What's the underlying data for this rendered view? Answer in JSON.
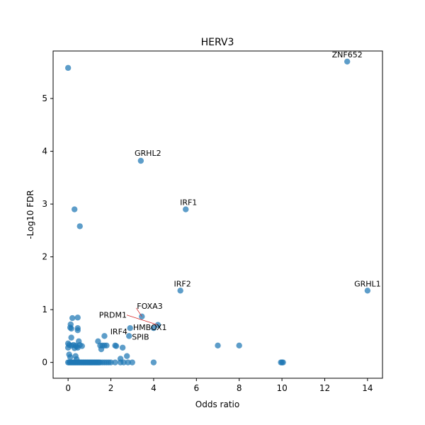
{
  "chart_data": {
    "type": "scatter",
    "title": "HERV3",
    "xlabel": "Odds ratio",
    "ylabel": "-Log10 FDR",
    "xlim": [
      -0.7,
      14.7
    ],
    "ylim": [
      -0.3,
      5.9
    ],
    "xticks": [
      0,
      2,
      4,
      6,
      8,
      10,
      12,
      14
    ],
    "yticks": [
      0,
      1,
      2,
      3,
      4,
      5
    ],
    "grid": false,
    "point_color": "#1f77b4",
    "connector_color": "#d62728",
    "points": [
      {
        "x": 0,
        "y": 5.58
      },
      {
        "x": 0.3,
        "y": 2.9
      },
      {
        "x": 0.55,
        "y": 2.58
      },
      {
        "x": 0.2,
        "y": 0.84
      },
      {
        "x": 0.45,
        "y": 0.85
      },
      {
        "x": 0.12,
        "y": 0.72
      },
      {
        "x": 0.1,
        "y": 0.66
      },
      {
        "x": 0.15,
        "y": 0.64
      },
      {
        "x": 0.45,
        "y": 0.65
      },
      {
        "x": 0.45,
        "y": 0.61
      },
      {
        "x": 0.15,
        "y": 0.47
      },
      {
        "x": 0.5,
        "y": 0.4
      },
      {
        "x": 0,
        "y": 0.36
      },
      {
        "x": 0.05,
        "y": 0.33
      },
      {
        "x": 0.15,
        "y": 0.32
      },
      {
        "x": 0.25,
        "y": 0.33
      },
      {
        "x": 0.35,
        "y": 0.32
      },
      {
        "x": 0.4,
        "y": 0.3
      },
      {
        "x": 0.45,
        "y": 0.28
      },
      {
        "x": 0.55,
        "y": 0.33
      },
      {
        "x": 0.65,
        "y": 0.31
      },
      {
        "x": 0,
        "y": 0.28
      },
      {
        "x": 0.3,
        "y": 0.27
      },
      {
        "x": 0.05,
        "y": 0.15
      },
      {
        "x": 0.1,
        "y": 0.1
      },
      {
        "x": 0.35,
        "y": 0.12
      },
      {
        "x": 0.4,
        "y": 0.06
      },
      {
        "x": 0,
        "y": 0
      },
      {
        "x": 0.05,
        "y": 0
      },
      {
        "x": 0.1,
        "y": 0
      },
      {
        "x": 0.15,
        "y": 0
      },
      {
        "x": 0.2,
        "y": 0
      },
      {
        "x": 0.25,
        "y": 0
      },
      {
        "x": 0.3,
        "y": 0
      },
      {
        "x": 0.35,
        "y": 0
      },
      {
        "x": 0.4,
        "y": 0
      },
      {
        "x": 0.45,
        "y": 0
      },
      {
        "x": 0.5,
        "y": 0
      },
      {
        "x": 0.55,
        "y": 0
      },
      {
        "x": 0.6,
        "y": 0
      },
      {
        "x": 0.65,
        "y": 0
      },
      {
        "x": 0.7,
        "y": 0
      },
      {
        "x": 0.75,
        "y": 0
      },
      {
        "x": 0.8,
        "y": 0
      },
      {
        "x": 0.85,
        "y": 0
      },
      {
        "x": 0.9,
        "y": 0
      },
      {
        "x": 0.95,
        "y": 0
      },
      {
        "x": 1.0,
        "y": 0
      },
      {
        "x": 1.05,
        "y": 0
      },
      {
        "x": 1.1,
        "y": 0
      },
      {
        "x": 1.15,
        "y": 0
      },
      {
        "x": 1.2,
        "y": 0
      },
      {
        "x": 1.25,
        "y": 0
      },
      {
        "x": 1.3,
        "y": 0
      },
      {
        "x": 1.35,
        "y": 0
      },
      {
        "x": 1.4,
        "y": 0
      },
      {
        "x": 1.45,
        "y": 0
      },
      {
        "x": 1.5,
        "y": 0
      },
      {
        "x": 1.6,
        "y": 0
      },
      {
        "x": 1.7,
        "y": 0
      },
      {
        "x": 1.8,
        "y": 0
      },
      {
        "x": 1.9,
        "y": 0
      },
      {
        "x": 2.0,
        "y": 0
      },
      {
        "x": 2.2,
        "y": 0
      },
      {
        "x": 2.45,
        "y": 0
      },
      {
        "x": 2.6,
        "y": 0
      },
      {
        "x": 2.8,
        "y": 0
      },
      {
        "x": 3.0,
        "y": 0
      },
      {
        "x": 4.0,
        "y": 0
      },
      {
        "x": 1.4,
        "y": 0.4
      },
      {
        "x": 1.5,
        "y": 0.32
      },
      {
        "x": 1.6,
        "y": 0.32
      },
      {
        "x": 1.7,
        "y": 0.32
      },
      {
        "x": 1.8,
        "y": 0.32
      },
      {
        "x": 1.55,
        "y": 0.25
      },
      {
        "x": 1.7,
        "y": 0.5
      },
      {
        "x": 2.2,
        "y": 0.32
      },
      {
        "x": 2.25,
        "y": 0.31
      },
      {
        "x": 2.55,
        "y": 0.28
      },
      {
        "x": 2.75,
        "y": 0.12
      },
      {
        "x": 2.45,
        "y": 0.07
      },
      {
        "x": 7.0,
        "y": 0.32
      },
      {
        "x": 8.0,
        "y": 0.32
      },
      {
        "x": 9.95,
        "y": 0
      },
      {
        "x": 10.0,
        "y": 0
      },
      {
        "x": 10.05,
        "y": 0
      }
    ],
    "labeled_points": [
      {
        "label": "ZNF652",
        "x": 13.05,
        "y": 5.7
      },
      {
        "label": "GRHL2",
        "x": 3.4,
        "y": 3.82
      },
      {
        "label": "IRF1",
        "x": 5.5,
        "y": 2.9
      },
      {
        "label": "IRF2",
        "x": 5.25,
        "y": 1.36
      },
      {
        "label": "GRHL1",
        "x": 14.0,
        "y": 1.36
      },
      {
        "label": "FOXA3",
        "x": 3.45,
        "y": 0.87
      },
      {
        "label": "PRDM1",
        "x": 4.2,
        "y": 0.71
      },
      {
        "label": "HMBOX1",
        "x": 4.0,
        "y": 0.65
      },
      {
        "label": "IRF4",
        "x": 2.9,
        "y": 0.65
      },
      {
        "label": "SPIB",
        "x": 2.85,
        "y": 0.5
      }
    ]
  }
}
